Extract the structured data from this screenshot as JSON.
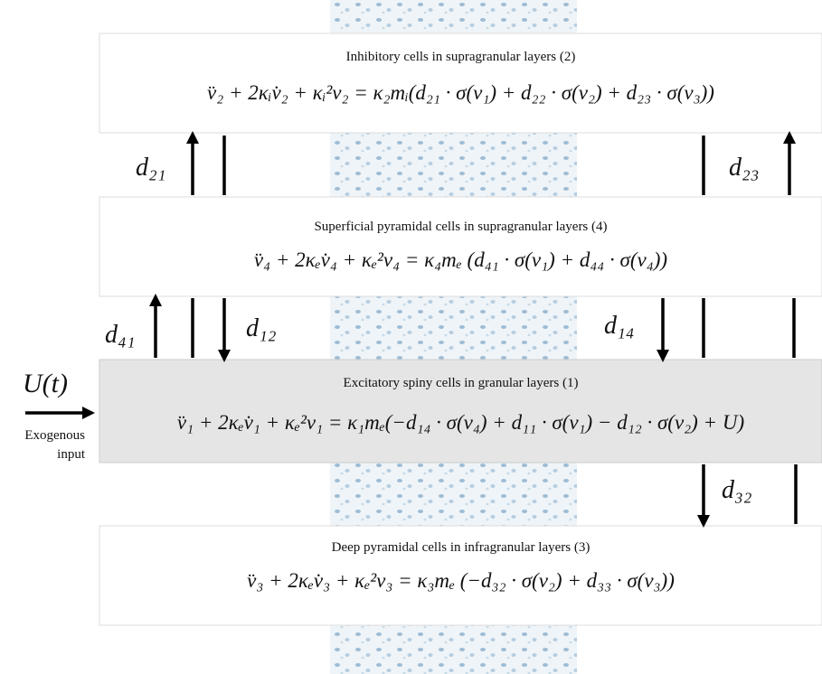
{
  "boxes": [
    {
      "title": "Inhibitory cells in supragranular layers (2)",
      "equation": "v̈₂ + 2κᵢv̇₂ + κᵢ²v₂ = κ₂mᵢ(d₂₁ · σ(v₁) + d₂₂ · σ(v₂) + d₂₃ · σ(v₃))"
    },
    {
      "title": "Superficial pyramidal cells in supragranular  layers (4)",
      "equation": "v̈₄ + 2κₑv̇₄ + κₑ²v₄ = κ₄mₑ (d₄₁ · σ(v₁) + d₄₄ · σ(v₄))"
    },
    {
      "title": "Excitatory spiny cells in granular layers (1)",
      "equation": "v̈₁ + 2κₑv̇₁ + κₑ²v₁ = κ₁mₑ(−d₁₄ · σ(v₄) + d₁₁ · σ(v₁) − d₁₂ · σ(v₂) + U)"
    },
    {
      "title": "Deep pyramidal cells in infragranular  layers (3)",
      "equation": "v̈₃ + 2κₑv̇₃ + κₑ²v₃ = κ₃mₑ (−d₃₂ · σ(v₂) + d₃₃ · σ(v₃))"
    }
  ],
  "connections": [
    "d₂₁",
    "d₂₃",
    "d₄₁",
    "d₁₂",
    "d₁₄",
    "d₃₂"
  ],
  "input": {
    "label": "U(t)",
    "caption": "Exogenous input"
  }
}
